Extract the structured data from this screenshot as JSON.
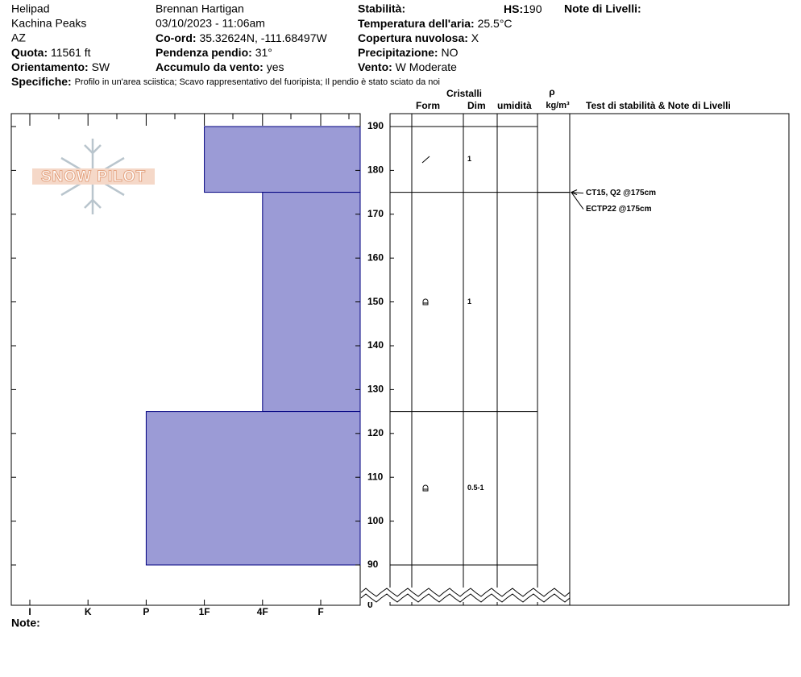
{
  "header": {
    "location": "Helipad",
    "area": "Kachina Peaks",
    "state": "AZ",
    "elevation": {
      "label": "Quota:",
      "value": "11561 ft"
    },
    "aspect": {
      "label": "Orientamento:",
      "value": "SW"
    },
    "observer": "Brennan Hartigan",
    "datetime": "03/10/2023 - 11:06am",
    "coords": {
      "label": "Co-ord:",
      "value": "35.32624N, -111.68497W"
    },
    "slope": {
      "label": "Pendenza pendio:",
      "value": "31°"
    },
    "wind_loading": {
      "label": "Accumulo da vento:",
      "value": "yes"
    },
    "stability_label": "Stabilità:",
    "hs": {
      "label": "HS:",
      "value": 190
    },
    "air_temp": {
      "label": "Temperatura dell'aria:",
      "value": "25.5°C"
    },
    "sky": {
      "label": "Copertura nuvolosa:",
      "value": "X"
    },
    "precip": {
      "label": "Precipitazione:",
      "value": "NO"
    },
    "wind": {
      "label": "Vento:",
      "value": "W Moderate"
    },
    "layer_notes_label": "Note di Livelli:",
    "specifics": {
      "label": "Specifiche:",
      "value": "Profilo in un'area sciistica; Scavo rappresentativo del fuoripista; Il pendio è stato sciato da noi"
    },
    "notes_label": "Note:",
    "logo": "SNOW PILOT"
  },
  "chart_data": {
    "type": "profile",
    "columns": {
      "crystals": "Cristalli",
      "form": "Form",
      "size": "Dim",
      "moisture": "umidità",
      "density_symbol": "ρ",
      "density_unit": "kg/m³",
      "tests": "Test di stabilità & Note di Livelli"
    },
    "categories": [
      "I",
      "K",
      "P",
      "1F",
      "4F",
      "F"
    ],
    "ylim": [
      0,
      190
    ],
    "yticks": [
      0,
      90,
      100,
      110,
      120,
      130,
      140,
      150,
      160,
      170,
      180,
      190
    ],
    "color": "#9b9bd6",
    "layers": [
      {
        "top": 190,
        "bottom": 175,
        "hardness": "1F",
        "size": "1"
      },
      {
        "top": 175,
        "bottom": 125,
        "hardness": "4F",
        "size": "1"
      },
      {
        "top": 125,
        "bottom": 90,
        "hardness": "P",
        "size": "0.5-1"
      }
    ],
    "tests": [
      {
        "text": "CT15, Q2 @175cm",
        "depth": 175
      },
      {
        "text": "ECTP22 @175cm",
        "depth": 175
      }
    ]
  }
}
